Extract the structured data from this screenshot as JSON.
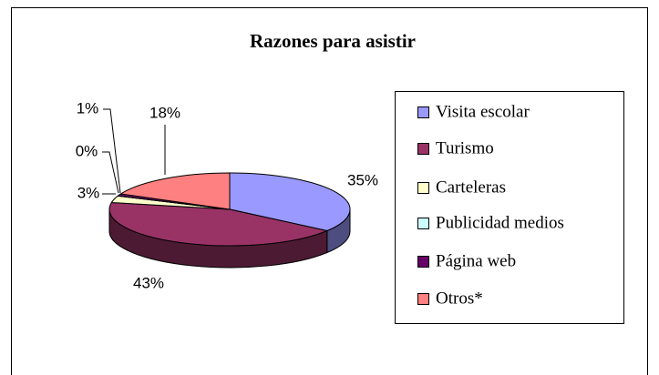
{
  "chart_data": {
    "type": "pie",
    "title": "Razones para asistir",
    "categories": [
      "Visita escolar",
      "Turismo",
      "Carteleras",
      "Publicidad medios",
      "Página web",
      "Otros*"
    ],
    "values": [
      35,
      43,
      3,
      0,
      1,
      18
    ],
    "value_labels": [
      "35%",
      "43%",
      "3%",
      "0%",
      "1%",
      "18%"
    ],
    "colors": [
      "#9999ff",
      "#993366",
      "#ffffcc",
      "#ccffff",
      "#660066",
      "#ff8080"
    ],
    "legend": "right"
  }
}
